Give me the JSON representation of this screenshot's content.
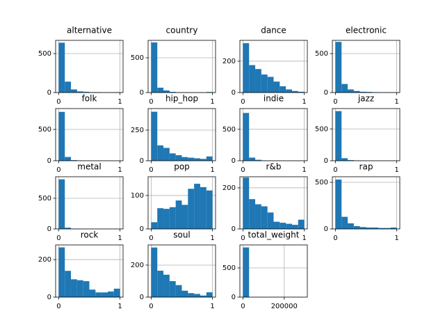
{
  "chart_data": [
    {
      "type": "histogram",
      "title": "alternative",
      "bins": [
        0,
        0.1,
        0.2,
        0.3,
        0.4,
        0.5,
        0.6,
        0.7,
        0.8,
        0.9,
        1
      ],
      "counts": [
        640,
        140,
        40,
        15,
        10,
        5,
        5,
        3,
        2,
        5
      ],
      "xlim": [
        -0.05,
        1.05
      ],
      "ylim": [
        0,
        670
      ],
      "xticks": [
        0,
        1
      ],
      "yticks": [
        0,
        500
      ],
      "color": "#1f77b4",
      "grid": true
    },
    {
      "type": "histogram",
      "title": "country",
      "bins": [
        0,
        0.1,
        0.2,
        0.3,
        0.4,
        0.5,
        0.6,
        0.7,
        0.8,
        0.9,
        1
      ],
      "counts": [
        720,
        70,
        30,
        10,
        5,
        3,
        2,
        1,
        1,
        8
      ],
      "xlim": [
        -0.05,
        1.05
      ],
      "ylim": [
        0,
        750
      ],
      "xticks": [
        0,
        1
      ],
      "yticks": [
        0,
        500
      ],
      "color": "#1f77b4",
      "grid": true
    },
    {
      "type": "histogram",
      "title": "dance",
      "bins": [
        0,
        0.1,
        0.2,
        0.3,
        0.4,
        0.5,
        0.6,
        0.7,
        0.8,
        0.9,
        1
      ],
      "counts": [
        315,
        175,
        150,
        115,
        100,
        70,
        40,
        20,
        10,
        5
      ],
      "xlim": [
        -0.05,
        1.05
      ],
      "ylim": [
        0,
        333
      ],
      "xticks": [
        0,
        1
      ],
      "yticks": [
        0,
        200
      ],
      "color": "#1f77b4",
      "grid": true
    },
    {
      "type": "histogram",
      "title": "electronic",
      "bins": [
        0,
        0.1,
        0.2,
        0.3,
        0.4,
        0.5,
        0.6,
        0.7,
        0.8,
        0.9,
        1
      ],
      "counts": [
        650,
        110,
        40,
        20,
        10,
        8,
        5,
        3,
        2,
        3
      ],
      "xlim": [
        -0.05,
        1.05
      ],
      "ylim": [
        0,
        670
      ],
      "xticks": [
        0,
        1
      ],
      "yticks": [
        0,
        500
      ],
      "color": "#1f77b4",
      "grid": true
    },
    {
      "type": "histogram",
      "title": "folk",
      "bins": [
        0,
        0.1,
        0.2,
        0.3,
        0.4,
        0.5,
        0.6,
        0.7,
        0.8,
        0.9,
        1
      ],
      "counts": [
        780,
        60,
        10,
        5,
        2,
        1,
        1,
        1,
        1,
        1
      ],
      "xlim": [
        -0.05,
        1.05
      ],
      "ylim": [
        0,
        833
      ],
      "xticks": [
        0,
        1
      ],
      "yticks": [
        0,
        500
      ],
      "color": "#1f77b4",
      "grid": true
    },
    {
      "type": "histogram",
      "title": "hip_hop",
      "bins": [
        0,
        0.1,
        0.2,
        0.3,
        0.4,
        0.5,
        0.6,
        0.7,
        0.8,
        0.9,
        1
      ],
      "counts": [
        400,
        125,
        105,
        60,
        45,
        30,
        25,
        20,
        15,
        35
      ],
      "xlim": [
        -0.05,
        1.05
      ],
      "ylim": [
        0,
        426
      ],
      "xticks": [
        0,
        1
      ],
      "yticks": [
        0,
        250
      ],
      "color": "#1f77b4",
      "grid": true
    },
    {
      "type": "histogram",
      "title": "indie",
      "bins": [
        0,
        0.1,
        0.2,
        0.3,
        0.4,
        0.5,
        0.6,
        0.7,
        0.8,
        0.9,
        1
      ],
      "counts": [
        760,
        50,
        15,
        5,
        3,
        2,
        1,
        1,
        1,
        2
      ],
      "xlim": [
        -0.05,
        1.05
      ],
      "ylim": [
        0,
        830
      ],
      "xticks": [
        0,
        1
      ],
      "yticks": [
        0,
        500
      ],
      "color": "#1f77b4",
      "grid": true
    },
    {
      "type": "histogram",
      "title": "jazz",
      "bins": [
        0,
        0.1,
        0.2,
        0.3,
        0.4,
        0.5,
        0.6,
        0.7,
        0.8,
        0.9,
        1
      ],
      "counts": [
        780,
        40,
        10,
        5,
        2,
        1,
        1,
        1,
        1,
        2
      ],
      "xlim": [
        -0.05,
        1.05
      ],
      "ylim": [
        0,
        820
      ],
      "xticks": [
        0,
        1
      ],
      "yticks": [
        0,
        500
      ],
      "color": "#1f77b4",
      "grid": true
    },
    {
      "type": "histogram",
      "title": "metal",
      "bins": [
        0,
        0.1,
        0.2,
        0.3,
        0.4,
        0.5,
        0.6,
        0.7,
        0.8,
        0.9,
        1
      ],
      "counts": [
        810,
        20,
        5,
        2,
        1,
        1,
        1,
        1,
        1,
        1
      ],
      "xlim": [
        -0.05,
        1.05
      ],
      "ylim": [
        0,
        852
      ],
      "xticks": [
        0,
        1
      ],
      "yticks": [
        0,
        500
      ],
      "color": "#1f77b4",
      "grid": true
    },
    {
      "type": "histogram",
      "title": "pop",
      "bins": [
        0,
        0.1,
        0.2,
        0.3,
        0.4,
        0.5,
        0.6,
        0.7,
        0.8,
        0.9,
        1
      ],
      "counts": [
        20,
        62,
        60,
        65,
        85,
        72,
        120,
        135,
        125,
        115
      ],
      "xlim": [
        -0.05,
        1.05
      ],
      "ylim": [
        0,
        156
      ],
      "xticks": [
        0,
        1
      ],
      "yticks": [
        0,
        100
      ],
      "color": "#1f77b4",
      "grid": true
    },
    {
      "type": "histogram",
      "title": "r&b",
      "bins": [
        0,
        0.1,
        0.2,
        0.3,
        0.4,
        0.5,
        0.6,
        0.7,
        0.8,
        0.9,
        1
      ],
      "counts": [
        250,
        145,
        120,
        110,
        80,
        35,
        30,
        25,
        20,
        45
      ],
      "xlim": [
        -0.05,
        1.05
      ],
      "ylim": [
        0,
        254
      ],
      "xticks": [
        0,
        1
      ],
      "yticks": [
        0,
        200
      ],
      "color": "#1f77b4",
      "grid": true
    },
    {
      "type": "histogram",
      "title": "rap",
      "bins": [
        0,
        0.1,
        0.2,
        0.3,
        0.4,
        0.5,
        0.6,
        0.7,
        0.8,
        0.9,
        1
      ],
      "counts": [
        530,
        130,
        60,
        30,
        20,
        15,
        15,
        10,
        10,
        15
      ],
      "xlim": [
        -0.05,
        1.05
      ],
      "ylim": [
        0,
        560
      ],
      "xticks": [
        0,
        1
      ],
      "yticks": [
        0,
        500
      ],
      "color": "#1f77b4",
      "grid": true
    },
    {
      "type": "histogram",
      "title": "rock",
      "bins": [
        0,
        0.1,
        0.2,
        0.3,
        0.4,
        0.5,
        0.6,
        0.7,
        0.8,
        0.9,
        1
      ],
      "counts": [
        265,
        140,
        95,
        90,
        85,
        40,
        25,
        25,
        30,
        45
      ],
      "xlim": [
        -0.05,
        1.05
      ],
      "ylim": [
        0,
        278
      ],
      "xticks": [
        0,
        1
      ],
      "yticks": [
        0,
        200
      ],
      "color": "#1f77b4",
      "grid": true
    },
    {
      "type": "histogram",
      "title": "soul",
      "bins": [
        0,
        0.1,
        0.2,
        0.3,
        0.4,
        0.5,
        0.6,
        0.7,
        0.8,
        0.9,
        1
      ],
      "counts": [
        310,
        165,
        140,
        100,
        75,
        40,
        25,
        20,
        10,
        30
      ],
      "xlim": [
        -0.05,
        1.05
      ],
      "ylim": [
        0,
        326
      ],
      "xticks": [
        0,
        1
      ],
      "yticks": [
        0,
        200
      ],
      "color": "#1f77b4",
      "grid": true
    },
    {
      "type": "histogram",
      "title": "total_weight",
      "bins": [
        0,
        29700,
        59400,
        89100,
        118800,
        148500,
        178200,
        207900,
        237600,
        267300,
        297000
      ],
      "counts": [
        850,
        0,
        0,
        0,
        0,
        0,
        0,
        0,
        0,
        0
      ],
      "xlim": [
        -14850,
        311850
      ],
      "ylim": [
        0,
        892.5
      ],
      "xticks": [
        0,
        200000
      ],
      "yticks": [
        0,
        500
      ],
      "color": "#1f77b4",
      "grid": true
    }
  ]
}
